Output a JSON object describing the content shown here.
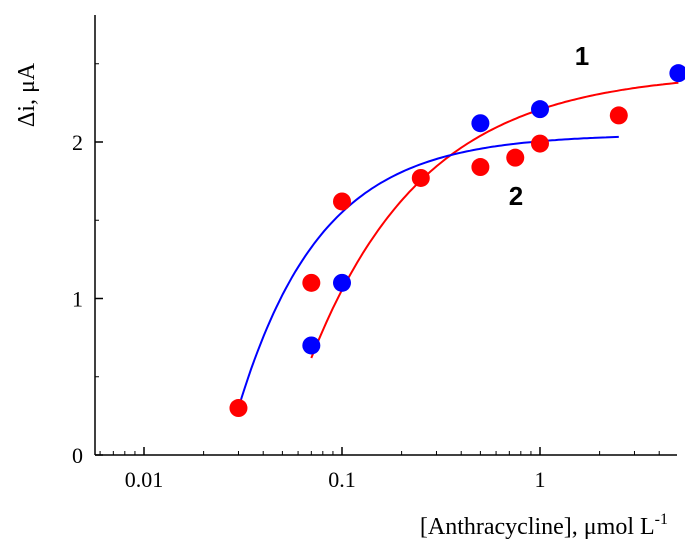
{
  "chart_data": {
    "type": "scatter",
    "title": "",
    "xlabel": "[Anthracycline], μmol L",
    "xlabel_superscript": "-1",
    "ylabel": "Δi, μA",
    "xscale": "log",
    "xlim": [
      0.005,
      5.0
    ],
    "ylim": [
      0,
      2.8
    ],
    "x_ticks": [
      0.01,
      0.1,
      1
    ],
    "x_tick_labels": [
      "0.01",
      "0.1",
      "1"
    ],
    "y_ticks": [
      0,
      1,
      2
    ],
    "y_tick_labels": [
      "0",
      "1",
      "2"
    ],
    "grid": false,
    "series": [
      {
        "name": "1",
        "color": "#0000ff",
        "curve_color": "#ff0000",
        "points": [
          {
            "x": 0.07,
            "y": 0.7
          },
          {
            "x": 0.1,
            "y": 1.1
          },
          {
            "x": 0.5,
            "y": 2.12
          },
          {
            "x": 1.0,
            "y": 2.21
          },
          {
            "x": 5.0,
            "y": 2.44
          }
        ],
        "fit": {
          "ymax": 2.45,
          "k": 1.75,
          "x0": 0.07,
          "xend": 5.0
        }
      },
      {
        "name": "2",
        "color": "#ff0000",
        "curve_color": "#0000ff",
        "points": [
          {
            "x": 0.03,
            "y": 0.3
          },
          {
            "x": 0.07,
            "y": 1.1
          },
          {
            "x": 0.1,
            "y": 1.62
          },
          {
            "x": 0.25,
            "y": 1.77
          },
          {
            "x": 0.5,
            "y": 1.84
          },
          {
            "x": 0.75,
            "y": 1.9
          },
          {
            "x": 1.0,
            "y": 1.99
          },
          {
            "x": 2.5,
            "y": 2.17
          }
        ],
        "fit": {
          "ymax": 2.05,
          "k": 2.4,
          "x0": 0.03,
          "xend": 2.5
        }
      }
    ]
  }
}
